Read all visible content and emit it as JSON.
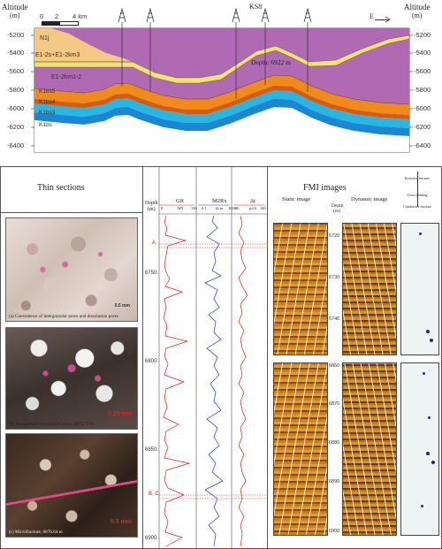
{
  "section": {
    "altitude_left": "Altitude",
    "altitude_unit_left": "(m)",
    "altitude_right": "Altitude",
    "altitude_unit_right": "(m)",
    "scale_ticks": [
      "0",
      "2",
      "4 km"
    ],
    "well_name": "KS8",
    "direction": "E",
    "depth_label": "Depth: 6922 m",
    "y_ticks": [
      "-5200",
      "-5400",
      "-5600",
      "-5800",
      "-6000",
      "-6200",
      "-6400"
    ],
    "strata": [
      "N1j",
      "E1-2s+E1-2km3",
      "E1-2km1-2",
      "K1bs5",
      "K1bs4",
      "K1bs3",
      "K1bs"
    ],
    "colors": {
      "N1j": "#f3c983",
      "E12s": "#f4e36c",
      "E12km": "#b06ab3",
      "K1bs5": "#f08a1a",
      "K1bs4": "#d85a10",
      "K1bs3": "#29b6e0",
      "K1bs": "#1a86d6"
    }
  },
  "thin_sections": {
    "title": "Thin sections",
    "captions": [
      "(a) Coexistence of intergranular pores and dissolution pores",
      "(b) Intragranular dissolution pores, 6875.72 m",
      "(c) Microfracture, 6876.64 m"
    ],
    "scales": [
      "0.5 mm",
      "0.25 mm",
      "0.5 mm"
    ]
  },
  "logs": {
    "depth_header": "Depth",
    "depth_unit": "(m)",
    "tracks": [
      {
        "name": "GR",
        "unit": "API",
        "min": "0",
        "max": "150",
        "color": "#d02020"
      },
      {
        "name": "M2Rx",
        "unit": "Ω·m",
        "min": "0.1",
        "max": "1000",
        "color": "#2030c0"
      },
      {
        "name": "Δt",
        "unit": "μs/ft",
        "min": "40",
        "max": "140",
        "color": "#d02020"
      }
    ],
    "depth_ticks": [
      "6750",
      "6800",
      "6850",
      "6900"
    ],
    "markers": [
      "A",
      "B, C"
    ]
  },
  "fmi": {
    "title": "FMI images",
    "static_label": "Static image",
    "dynamic_label": "Dynamic image",
    "depth_label": "Depth",
    "depth_unit": "(m)",
    "legend": [
      "Resistive fracture",
      "Cross bedding",
      "Conductive fracture"
    ],
    "upper_depths": [
      "6720",
      "6730",
      "6740"
    ],
    "lower_depths": [
      "6860",
      "6870",
      "6880",
      "6890",
      "6900"
    ]
  }
}
